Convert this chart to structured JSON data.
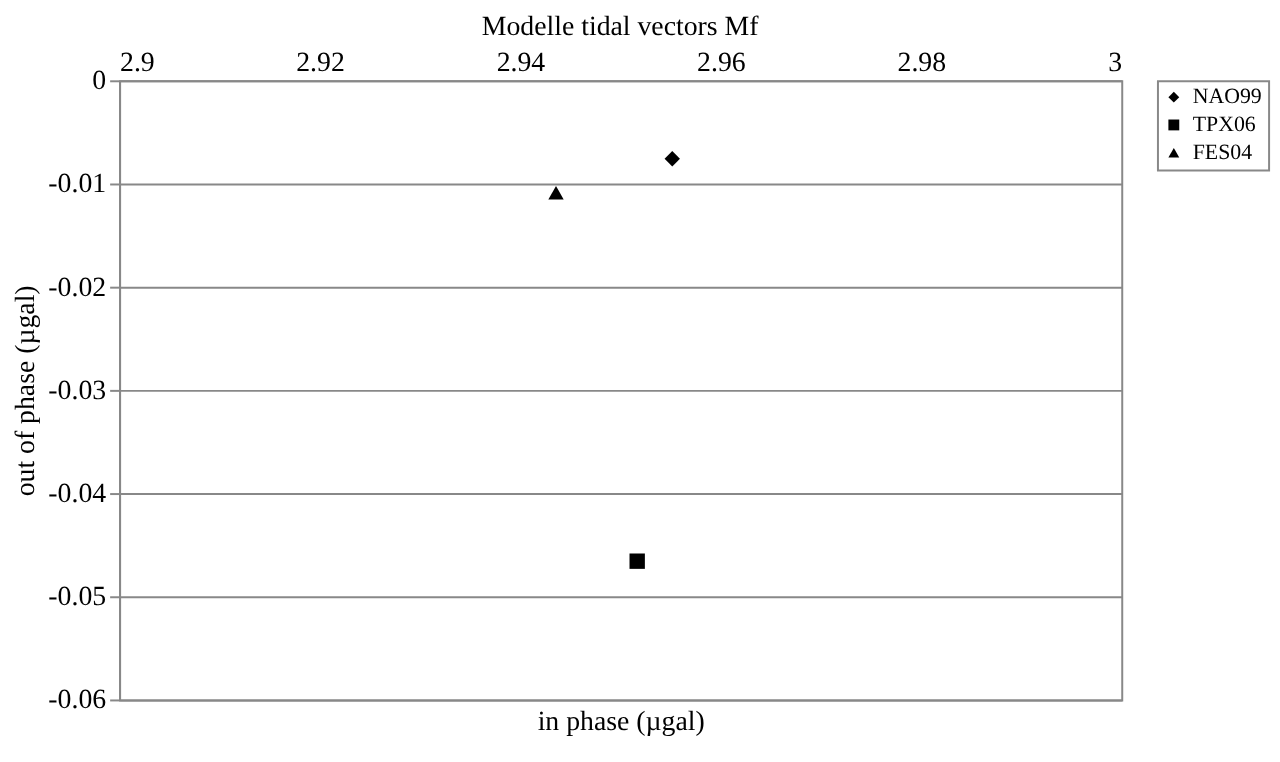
{
  "chart_data": {
    "type": "scatter",
    "title": "Modelle tidal vectors Mf",
    "xlabel": "in phase (µgal)",
    "ylabel": "out of phase (µgal)",
    "series": [
      {
        "name": "NAO99",
        "color": "#000000",
        "marker": "diamond",
        "x": [
          2.9552
        ],
        "values": [
          -0.0076
        ]
      },
      {
        "name": "TPX06",
        "color": "#000000",
        "marker": "square",
        "x": [
          2.9517
        ],
        "values": [
          -0.0466
        ]
      },
      {
        "name": "FES04",
        "color": "#000000",
        "marker": "triangle",
        "x": [
          2.9436
        ],
        "values": [
          -0.0109
        ]
      }
    ],
    "xlim": [
      2.9,
      3
    ],
    "xticks": [
      2.9,
      2.92,
      2.94,
      2.96,
      2.98,
      3
    ],
    "ylim": [
      -0.06,
      0
    ],
    "yticks": [
      0,
      -0.01,
      -0.02,
      -0.03,
      -0.04,
      -0.05,
      -0.06
    ],
    "grid": "y",
    "legend": "right"
  }
}
